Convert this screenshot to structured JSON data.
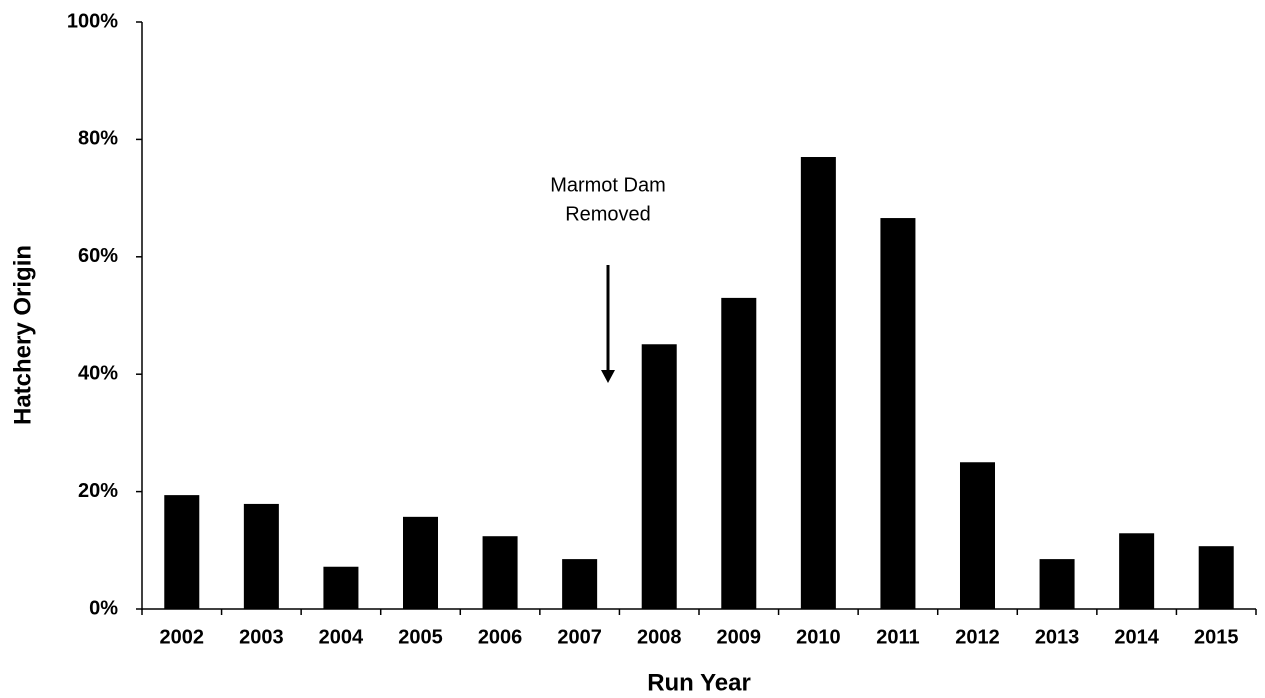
{
  "chart_data": {
    "type": "bar",
    "x_label": "Run Year",
    "y_label": "Hatchery Origin",
    "annotation": [
      "Marmot Dam",
      "Removed"
    ],
    "categories": [
      "2002",
      "2003",
      "2004",
      "2005",
      "2006",
      "2007",
      "2008",
      "2009",
      "2010",
      "2011",
      "2012",
      "2013",
      "2014",
      "2015"
    ],
    "values": [
      19.4,
      17.9,
      7.2,
      15.7,
      12.4,
      8.5,
      45.1,
      53.0,
      77.0,
      66.6,
      25.0,
      8.5,
      12.9,
      10.7
    ],
    "color": "#000000",
    "ylim": [
      0,
      100
    ],
    "yticks": [
      {
        "value": 0,
        "label": "0%"
      },
      {
        "value": 20,
        "label": "20%"
      },
      {
        "value": 40,
        "label": "40%"
      },
      {
        "value": 60,
        "label": "60%"
      },
      {
        "value": 80,
        "label": "80%"
      },
      {
        "value": 100,
        "label": "100%"
      }
    ],
    "grid": false
  }
}
